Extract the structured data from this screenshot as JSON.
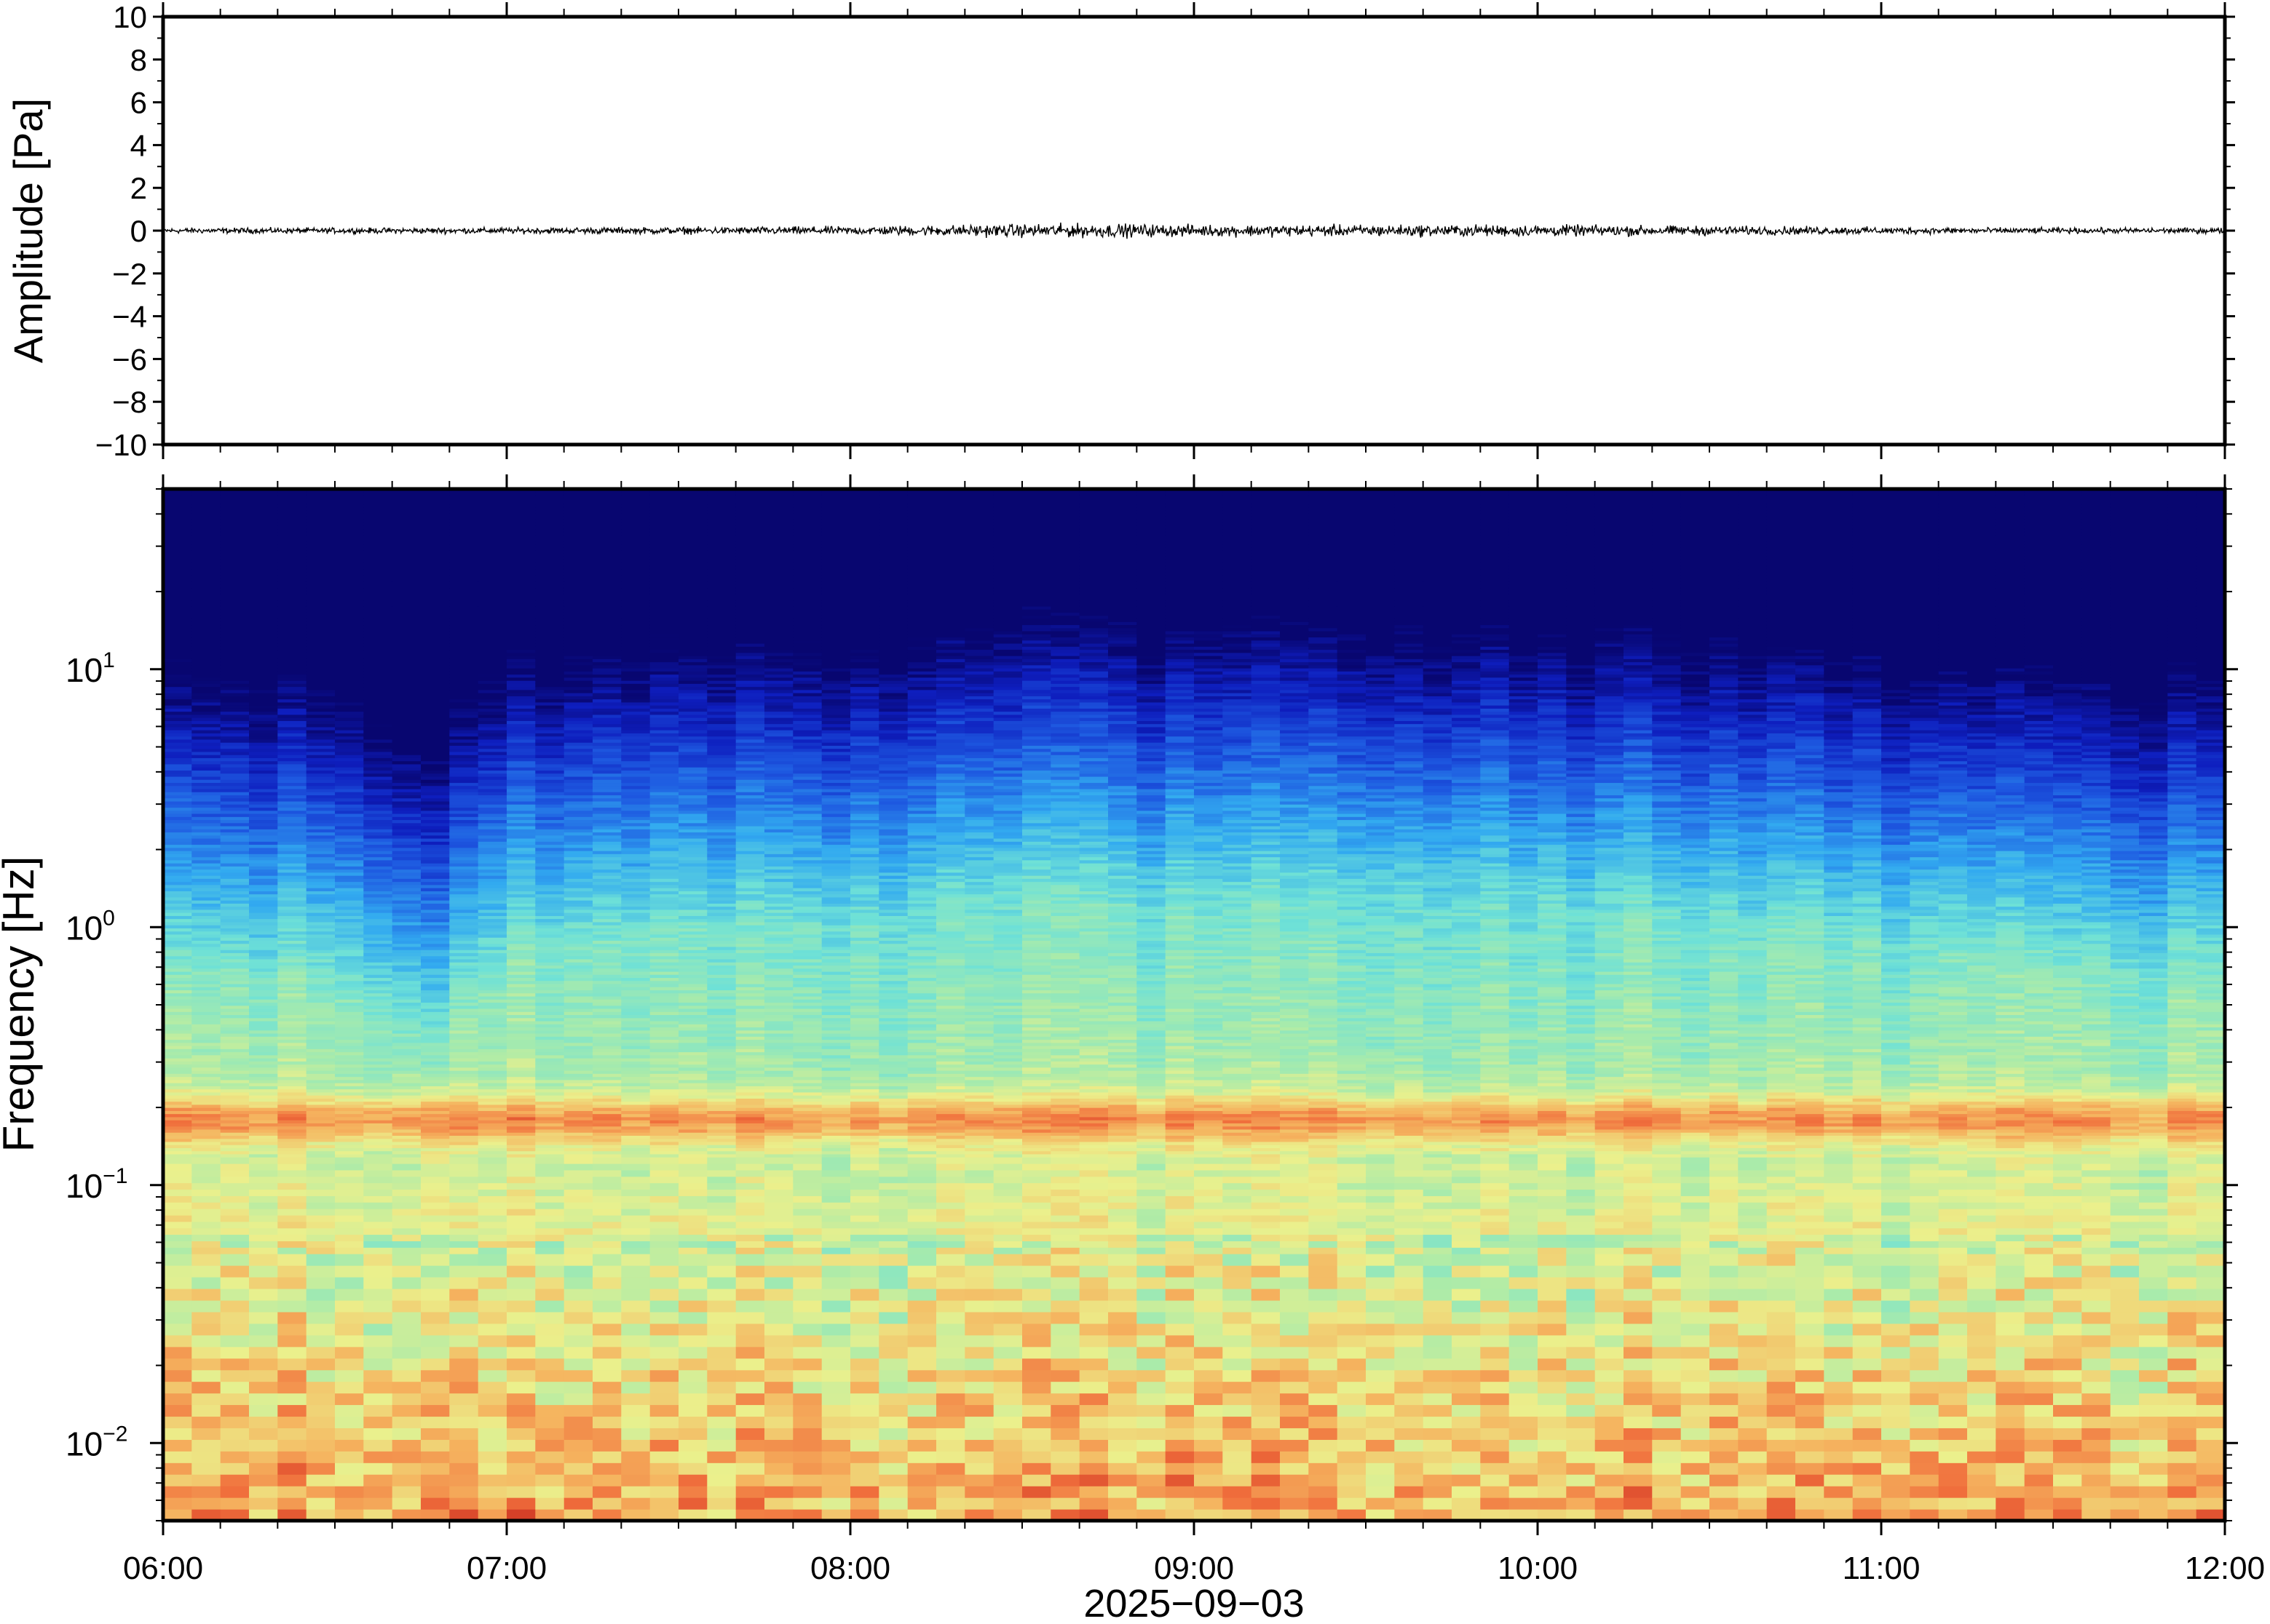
{
  "chart_data": [
    {
      "type": "line",
      "panel": "waveform",
      "ylabel": "Amplitude [Pa]",
      "ylim": [
        -10,
        10
      ],
      "yticks": [
        "10",
        "8",
        "6",
        "4",
        "2",
        "0",
        "−2",
        "−4",
        "−6",
        "−8",
        "−10"
      ],
      "ytick_values": [
        10,
        8,
        6,
        4,
        2,
        0,
        -2,
        -4,
        -6,
        -8,
        -10
      ],
      "xlim": [
        "06:00",
        "12:00"
      ],
      "series": [
        {
          "x_hours": [
            6.0,
            6.5,
            7.0,
            7.5,
            8.0,
            8.5,
            8.75,
            9.0,
            9.5,
            10.0,
            10.5,
            11.0,
            11.5,
            12.0
          ],
          "envelope_pa": [
            0.12,
            0.12,
            0.13,
            0.15,
            0.18,
            0.28,
            0.3,
            0.25,
            0.25,
            0.25,
            0.2,
            0.15,
            0.12,
            0.12
          ]
        }
      ],
      "color": "#000000"
    },
    {
      "type": "heatmap",
      "panel": "spectrogram",
      "ylabel": "Frequency [Hz]",
      "yscale": "log",
      "ylim_hz": [
        0.005,
        50
      ],
      "yticks": [
        {
          "base": "10",
          "exp": "1",
          "value": 10
        },
        {
          "base": "10",
          "exp": "0",
          "value": 1
        },
        {
          "base": "10",
          "exp": "−1",
          "value": 0.1
        },
        {
          "base": "10",
          "exp": "−2",
          "value": 0.01
        }
      ],
      "colormap": "jet",
      "colors": {
        "low": "#0b0775",
        "mid_low": "#2e6ee0",
        "mid": "#7be3c6",
        "mid_high": "#f0ef8e",
        "high": "#f79455"
      },
      "microbarom_band_hz": 0.18,
      "upper_energy_edge_hz": {
        "x_hours": [
          6.0,
          6.5,
          6.8,
          7.0,
          7.5,
          8.0,
          8.5,
          9.0,
          9.5,
          10.0,
          10.5,
          11.0,
          11.5,
          12.0
        ],
        "edge_hz": [
          9,
          9,
          3,
          11,
          15,
          16,
          20,
          18,
          20,
          19,
          16,
          13,
          10,
          9
        ]
      }
    }
  ],
  "xaxis": {
    "xlim": [
      "06:00",
      "12:00"
    ],
    "tick_labels": [
      "06:00",
      "07:00",
      "08:00",
      "09:00",
      "10:00",
      "11:00",
      "12:00"
    ],
    "date_label": "2025−09−03"
  },
  "icons": {
    "axes": "none"
  }
}
